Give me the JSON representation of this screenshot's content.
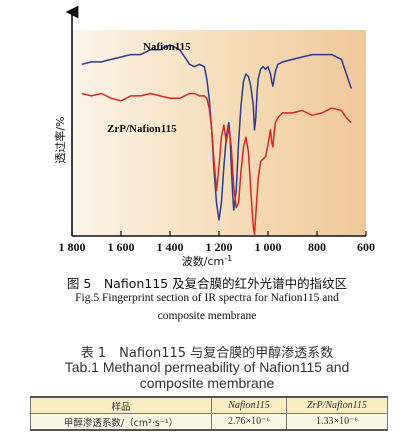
{
  "chart_data": {
    "type": "line",
    "xlabel": "波数/cm",
    "xlabel_sup": "-1",
    "ylabel": "透过率/%",
    "x_range": [
      1800,
      600
    ],
    "x_ticks": [
      "1 800",
      "1 600",
      "1 400",
      "1 200",
      "1 000",
      "800",
      "600"
    ],
    "x_tick_values": [
      1800,
      1600,
      1400,
      1200,
      1000,
      800,
      600
    ],
    "series": [
      {
        "name": "Nafion115",
        "color": "#2b3b8e",
        "x": [
          1760,
          1720,
          1680,
          1640,
          1600,
          1560,
          1520,
          1480,
          1440,
          1400,
          1380,
          1360,
          1340,
          1320,
          1300,
          1280,
          1260,
          1250,
          1240,
          1230,
          1220,
          1210,
          1200,
          1190,
          1180,
          1170,
          1160,
          1155,
          1150,
          1145,
          1140,
          1130,
          1120,
          1110,
          1100,
          1090,
          1080,
          1070,
          1060,
          1055,
          1050,
          1045,
          1040,
          1030,
          1020,
          1010,
          1000,
          990,
          985,
          980,
          975,
          970,
          960,
          940,
          900,
          860,
          820,
          780,
          740,
          700,
          680,
          660
        ],
        "y": [
          0.62,
          0.63,
          0.63,
          0.64,
          0.65,
          0.66,
          0.66,
          0.68,
          0.68,
          0.7,
          0.69,
          0.68,
          0.65,
          0.62,
          0.61,
          0.62,
          0.61,
          0.56,
          0.48,
          0.35,
          0.18,
          0.05,
          -0.02,
          0.05,
          0.2,
          0.32,
          0.38,
          0.33,
          0.2,
          0.1,
          0.02,
          0.1,
          0.3,
          0.45,
          0.55,
          0.58,
          0.57,
          0.53,
          0.45,
          0.35,
          0.4,
          0.5,
          0.56,
          0.6,
          0.61,
          0.6,
          0.61,
          0.58,
          0.55,
          0.53,
          0.56,
          0.59,
          0.62,
          0.63,
          0.64,
          0.65,
          0.66,
          0.66,
          0.66,
          0.64,
          0.58,
          0.52
        ]
      },
      {
        "name": "ZrP/Nafion115",
        "color": "#d42a24",
        "x": [
          1760,
          1720,
          1680,
          1640,
          1600,
          1560,
          1520,
          1480,
          1440,
          1400,
          1360,
          1320,
          1300,
          1280,
          1260,
          1250,
          1240,
          1230,
          1220,
          1210,
          1200,
          1190,
          1180,
          1170,
          1160,
          1150,
          1140,
          1130,
          1120,
          1110,
          1100,
          1090,
          1080,
          1070,
          1060,
          1055,
          1050,
          1040,
          1030,
          1020,
          1010,
          1000,
          990,
          985,
          980,
          975,
          970,
          960,
          940,
          900,
          860,
          820,
          780,
          740,
          700,
          680,
          660
        ],
        "y": [
          0.5,
          0.49,
          0.5,
          0.48,
          0.47,
          0.49,
          0.49,
          0.5,
          0.49,
          0.48,
          0.48,
          0.5,
          0.5,
          0.49,
          0.49,
          0.48,
          0.44,
          0.35,
          0.22,
          0.1,
          0.2,
          0.32,
          0.37,
          0.3,
          0.36,
          0.28,
          0.12,
          0.03,
          0.05,
          0.18,
          0.28,
          0.32,
          0.26,
          0.1,
          -0.05,
          -0.08,
          0.0,
          0.15,
          0.22,
          0.23,
          0.24,
          0.29,
          0.35,
          0.3,
          0.28,
          0.34,
          0.38,
          0.4,
          0.42,
          0.42,
          0.43,
          0.41,
          0.42,
          0.44,
          0.43,
          0.4,
          0.38
        ]
      }
    ],
    "background": "beige-orange gradient"
  },
  "figure": {
    "caption_cn": "图 5　Nafion115 及复合膜的红外光谱中的指纹区",
    "caption_en_line1": "Fig.5   Fingerprint section of IR spectra for Nafion115 and",
    "caption_en_line2": "composite membrane"
  },
  "table": {
    "title_cn": "表 1　Nafion115 与复合膜的甲醇渗透系数",
    "title_en_line1": "Tab.1   Methanol permeability of Nafion115 and",
    "title_en_line2": "composite membrane",
    "headers": [
      "样品",
      "Nafion115",
      "ZrP/Nafion115"
    ],
    "row_label": "甲醇渗透系数/（cm²·s⁻¹）",
    "values": [
      "2.76×10⁻⁶",
      "1.33×10⁻⁶"
    ]
  }
}
